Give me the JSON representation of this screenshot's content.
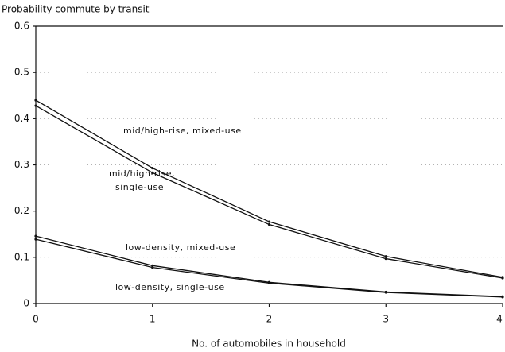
{
  "chart_data": {
    "type": "line",
    "title": "Probability commute by transit",
    "x_label": "No. of automobiles in household",
    "x": [
      0,
      1,
      2,
      3,
      4
    ],
    "series": [
      {
        "color": "#111111",
        "values": [
          0.44,
          0.293,
          0.177,
          0.102,
          0.057
        ]
      },
      {
        "color": "#111111",
        "values": [
          0.428,
          0.283,
          0.171,
          0.097,
          0.055
        ]
      },
      {
        "color": "#111111",
        "values": [
          0.146,
          0.082,
          0.046,
          0.025,
          0.015
        ]
      },
      {
        "color": "#111111",
        "values": [
          0.139,
          0.078,
          0.044,
          0.024,
          0.014
        ]
      }
    ],
    "annotations": [
      "mid/high-rise, mixed-use",
      "mid/high-rise,",
      "single-use",
      "low-density, mixed-use",
      "low-density, single-use"
    ],
    "xlim": [
      0,
      4
    ],
    "xticks": [
      0,
      1,
      2,
      3,
      4
    ],
    "ylim": [
      0,
      0.6
    ],
    "yticks": [
      0,
      0.1,
      0.2,
      0.3,
      0.4,
      0.5,
      0.6
    ],
    "grid": true
  }
}
